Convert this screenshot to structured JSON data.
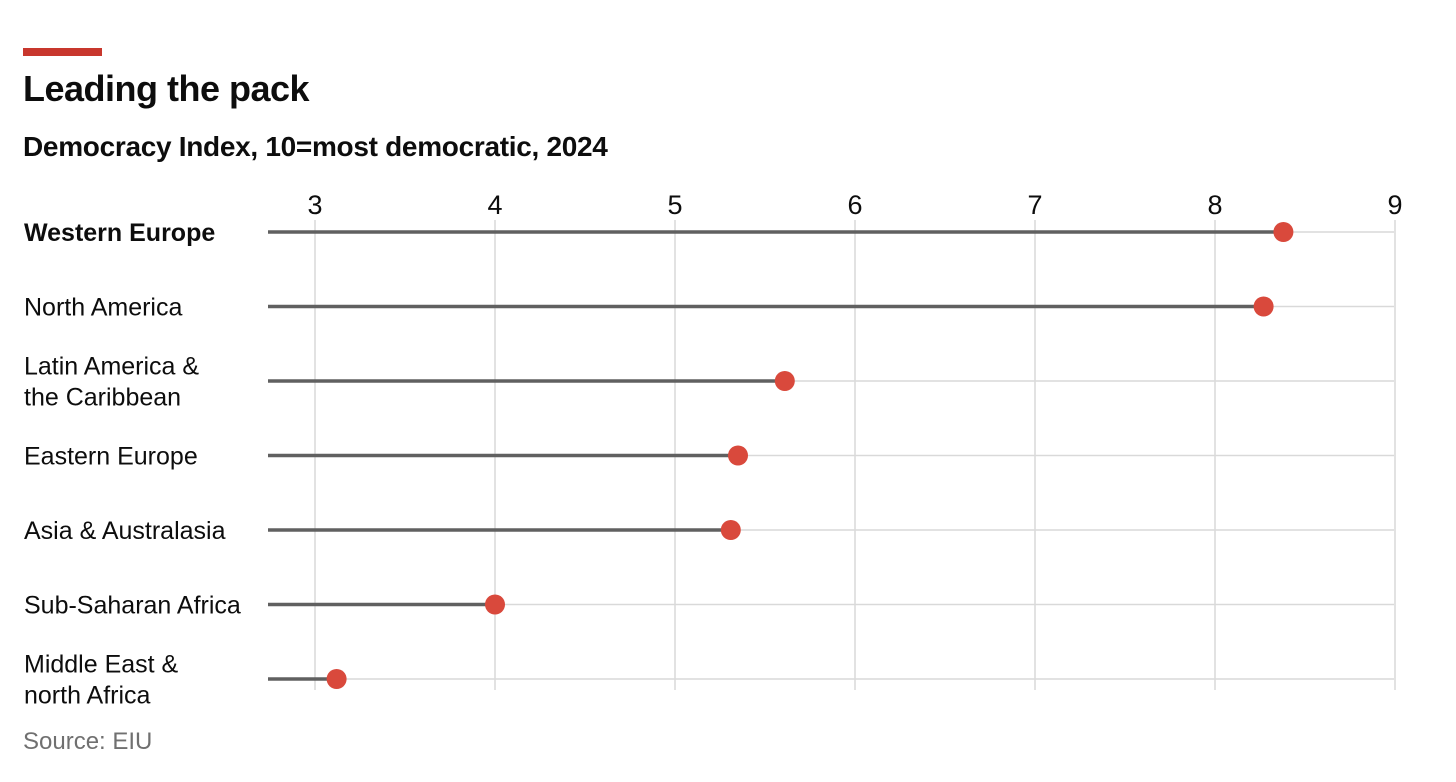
{
  "header": {
    "title": "Leading the pack",
    "subtitle": "Democracy Index, 10=most democratic, 2024"
  },
  "footer": {
    "source": "Source: EIU"
  },
  "colors": {
    "accent": "#c8372d",
    "dot": "#d9493c",
    "stem": "#606060",
    "grid": "#d9d9d9",
    "text": "#0d0d0d",
    "source_text": "#707070"
  },
  "chart_data": {
    "type": "lollipop",
    "title": "Leading the pack",
    "subtitle": "Democracy Index, 10=most democratic, 2024",
    "xlim": [
      2.75,
      9
    ],
    "x_ticks": [
      3,
      4,
      5,
      6,
      7,
      8,
      9
    ],
    "grid": true,
    "axis_position": "top",
    "categories": [
      {
        "label_lines": [
          "Western Europe"
        ],
        "value": 8.38,
        "bold": true
      },
      {
        "label_lines": [
          "North America"
        ],
        "value": 8.27,
        "bold": false
      },
      {
        "label_lines": [
          "Latin America &",
          "the Caribbean"
        ],
        "value": 5.61,
        "bold": false
      },
      {
        "label_lines": [
          "Eastern Europe"
        ],
        "value": 5.35,
        "bold": false
      },
      {
        "label_lines": [
          "Asia & Australasia"
        ],
        "value": 5.31,
        "bold": false
      },
      {
        "label_lines": [
          "Sub-Saharan Africa"
        ],
        "value": 4.0,
        "bold": false
      },
      {
        "label_lines": [
          "Middle East &",
          "north Africa"
        ],
        "value": 3.12,
        "bold": false
      }
    ]
  }
}
